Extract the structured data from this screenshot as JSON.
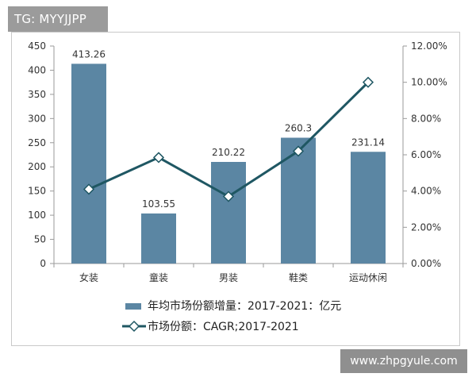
{
  "badge": {
    "text": "TG: MYYJJPP"
  },
  "watermark": {
    "text": "www.zhpgyule.com"
  },
  "legend": {
    "bar_label": "年均市场份额增量：2017-2021：亿元",
    "line_label": "市场份额：CAGR;2017-2021"
  },
  "colors": {
    "bar": "#5b86a3",
    "line": "#1f5763",
    "marker_fill": "#ffffff"
  },
  "chart_data": {
    "type": "bar",
    "categories": [
      "女装",
      "童装",
      "男装",
      "鞋类",
      "运动休闲"
    ],
    "series": [
      {
        "name": "年均市场份额增量：2017-2021：亿元",
        "type": "bar",
        "axis": "left",
        "values": [
          413.26,
          103.55,
          210.22,
          260.3,
          231.14
        ],
        "labels": [
          "413.26",
          "103.55",
          "210.22",
          "260.3",
          "231.14"
        ]
      },
      {
        "name": "市场份额：CAGR;2017-2021",
        "type": "line",
        "axis": "right",
        "values": [
          4.1,
          5.85,
          3.7,
          6.2,
          10.0
        ]
      }
    ],
    "y_left": {
      "ylim": [
        0,
        450
      ],
      "ticks": [
        "0",
        "50",
        "100",
        "150",
        "200",
        "250",
        "300",
        "350",
        "400",
        "450"
      ]
    },
    "y_right": {
      "ylim": [
        0,
        12
      ],
      "ticks": [
        "0.00%",
        "2.00%",
        "4.00%",
        "6.00%",
        "8.00%",
        "10.00%",
        "12.00%"
      ]
    },
    "grid": false,
    "legend_position": "bottom"
  }
}
